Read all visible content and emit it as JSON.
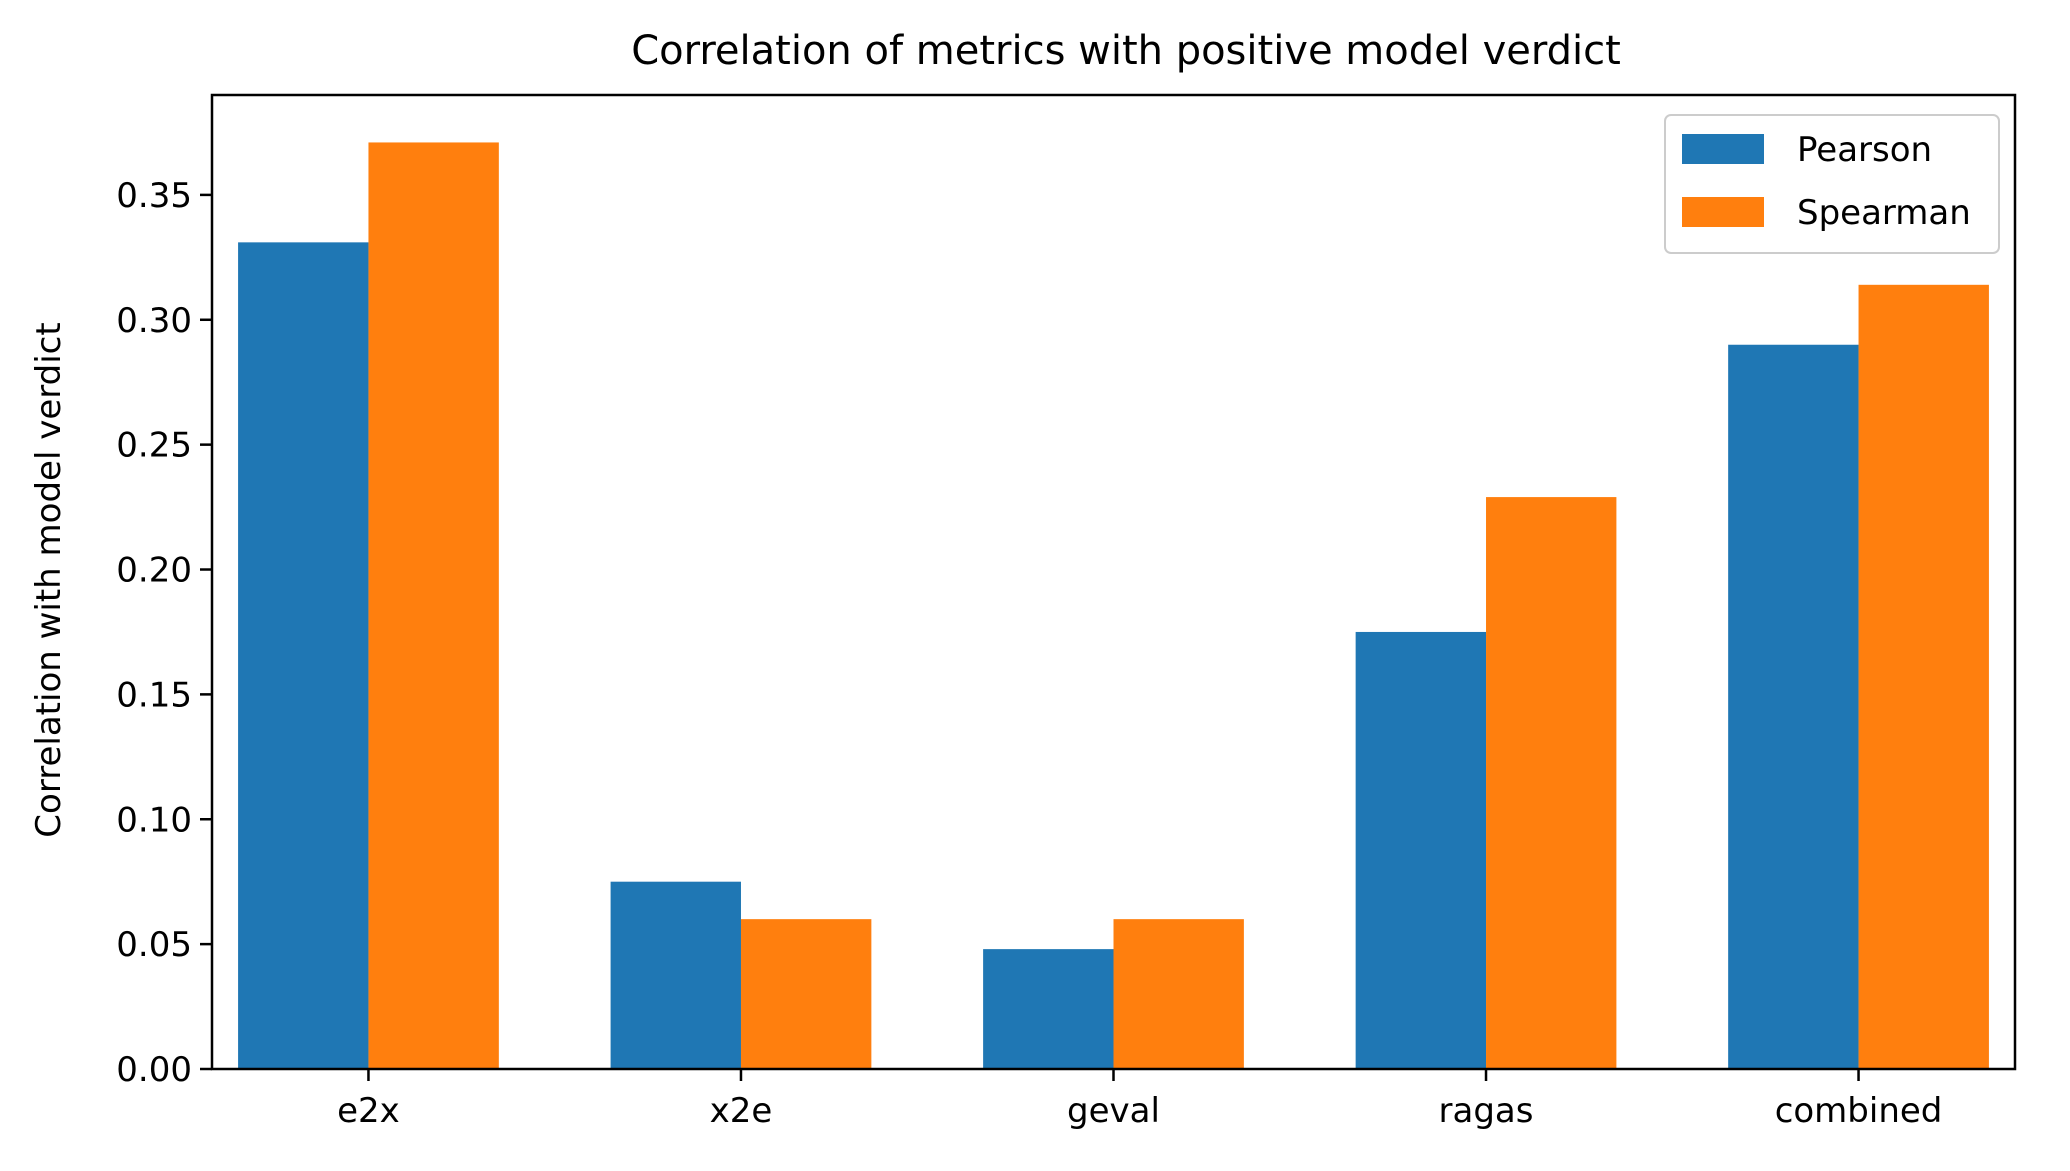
{
  "chart_data": {
    "type": "bar",
    "title": "Correlation of metrics with positive model verdict",
    "xlabel": "",
    "ylabel": "Correlation with model verdict",
    "categories": [
      "e2x",
      "x2e",
      "geval",
      "ragas",
      "combined"
    ],
    "series": [
      {
        "name": "Pearson",
        "color": "#1f77b4",
        "values": [
          0.331,
          0.075,
          0.048,
          0.175,
          0.29
        ]
      },
      {
        "name": "Spearman",
        "color": "#ff7f0e",
        "values": [
          0.371,
          0.06,
          0.06,
          0.229,
          0.314
        ]
      }
    ],
    "ylim": [
      0,
      0.39
    ],
    "yticks": [
      "0.00",
      "0.05",
      "0.10",
      "0.15",
      "0.20",
      "0.25",
      "0.30",
      "0.35"
    ],
    "grid": false,
    "legend_position": "top-right"
  }
}
